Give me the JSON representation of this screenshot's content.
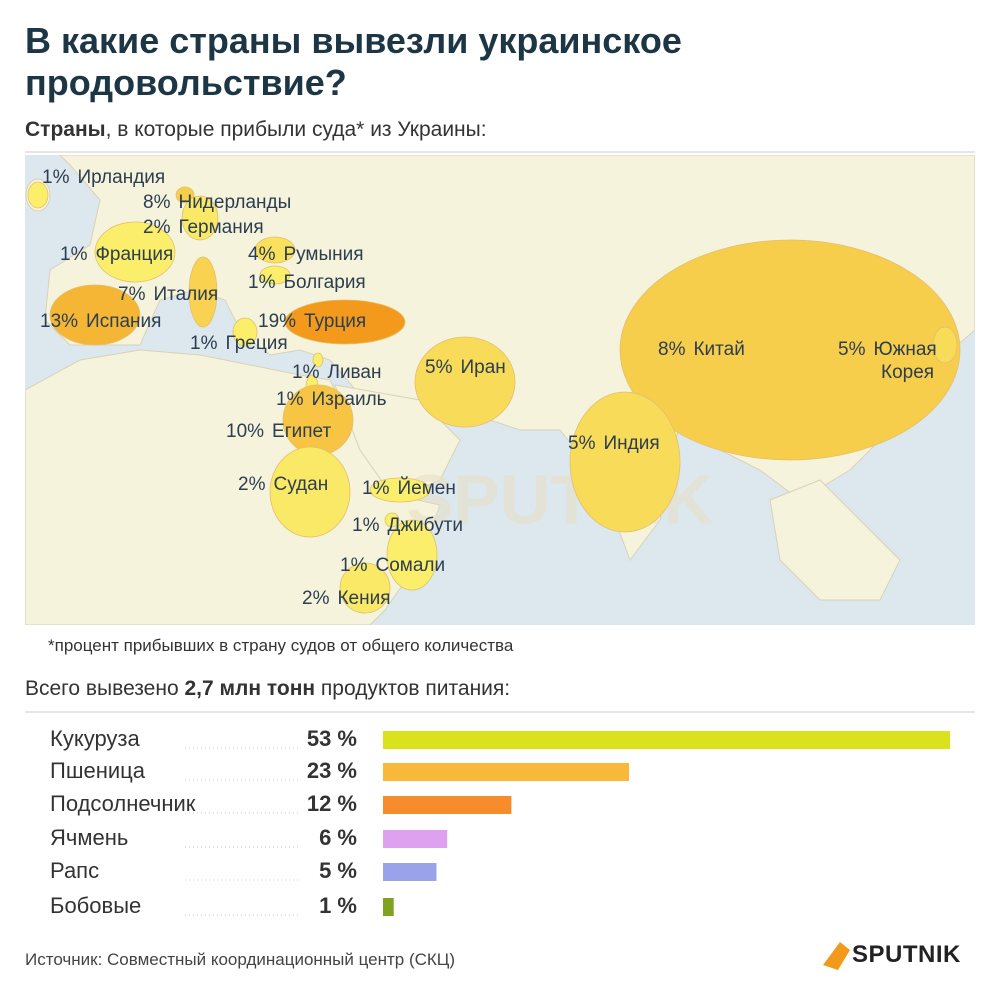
{
  "header": {
    "title": "В какие страны вывезли украинское продовольствие?",
    "subtitle": {
      "bold": "Страны",
      "text": ", в которые прибыли суда* из Украины:"
    }
  },
  "chart_data": [
    {
      "type": "map",
      "categories": [
        "Ирландия",
        "Нидерланды",
        "Германия",
        "Франция",
        "Румыния",
        "Болгария",
        "Италия",
        "Испания",
        "Турция",
        "Греция",
        "Ливан",
        "Иран",
        "Израиль",
        "Китай",
        "Южная Корея",
        "Египет",
        "Индия",
        "Судан",
        "Йемен",
        "Джибути",
        "Сомали",
        "Кения"
      ],
      "values": [
        1,
        8,
        2,
        1,
        4,
        1,
        7,
        13,
        19,
        1,
        1,
        5,
        1,
        8,
        5,
        10,
        5,
        2,
        1,
        1,
        1,
        2
      ],
      "value_labels": [
        "1%",
        "8%",
        "2%",
        "1%",
        "4%",
        "1%",
        "7%",
        "13%",
        "19%",
        "1%",
        "1%",
        "5%",
        "1%",
        "8%",
        "5%",
        "10%",
        "5%",
        "2%",
        "1%",
        "1%",
        "1%",
        "2%"
      ],
      "watermark": "SPUTNIK"
    },
    {
      "type": "bar",
      "horizontal": true,
      "categories": [
        "Кукуруза",
        "Пшеница",
        "Подсолнечник",
        "Ячмень",
        "Рапс",
        "Бобовые"
      ],
      "values": [
        53,
        23,
        12,
        6,
        5,
        1
      ],
      "value_labels": [
        "53 %",
        "23 %",
        "12 %",
        "6 %",
        "5 %",
        "1 %"
      ],
      "colors": [
        "#d9e21b",
        "#f8b93a",
        "#f68c2c",
        "#dea1f0",
        "#9aa3ea",
        "#7fa31e"
      ]
    }
  ],
  "footnote": "*процент прибывших в страну судов от общего количества",
  "total": {
    "before": "Всего вывезено ",
    "bold": "2,7 млн тонн",
    "after": " продуктов питания:"
  },
  "source": "Источник: Совместный координационный центр (СКЦ)",
  "logo": "SPUTNIK"
}
